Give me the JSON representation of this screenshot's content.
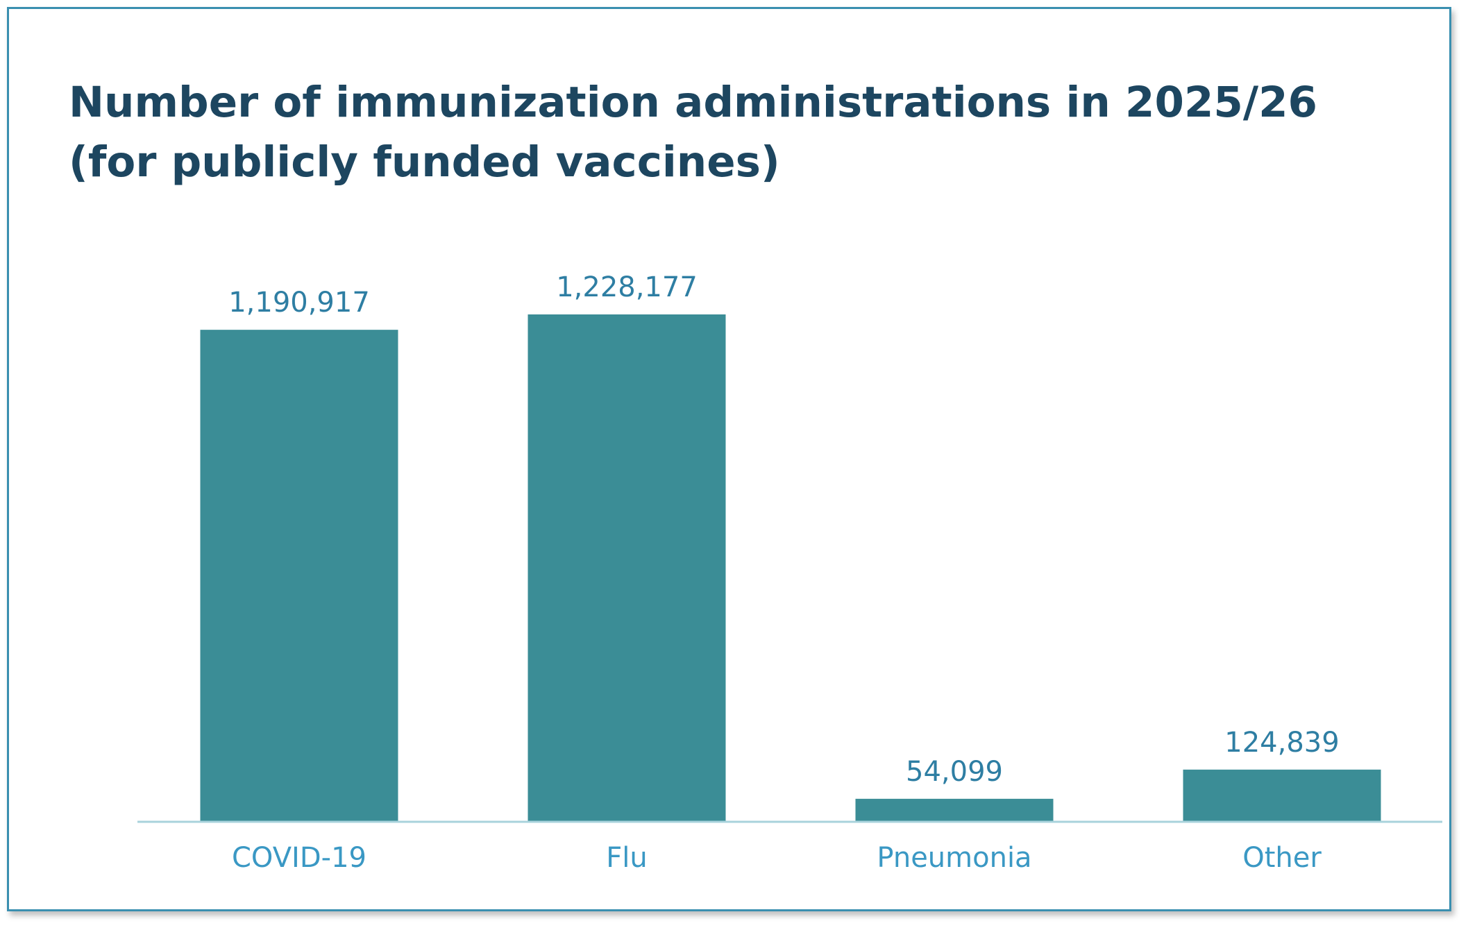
{
  "chart_data": {
    "type": "bar",
    "title_lines": [
      "Number of immunization administrations in 2025/26",
      "(for publicly funded vaccines)"
    ],
    "categories": [
      "COVID-19",
      "Flu",
      "Pneumonia",
      "Other"
    ],
    "values": [
      1190917,
      1228177,
      54099,
      124839
    ],
    "value_labels": [
      "1,190,917",
      "1,228,177",
      "54,099",
      "124,839"
    ],
    "xlabel": "",
    "ylabel": "",
    "ylim": [
      0,
      1228177
    ],
    "grid": false,
    "legend": "none",
    "colors": {
      "bar": "#3b8d96",
      "baseline": "#a9d3dc",
      "value_text": "#2e7ea3",
      "category_text": "#3a98c4",
      "title_text": "#1d4660",
      "frame": "#3a8fb0"
    }
  }
}
